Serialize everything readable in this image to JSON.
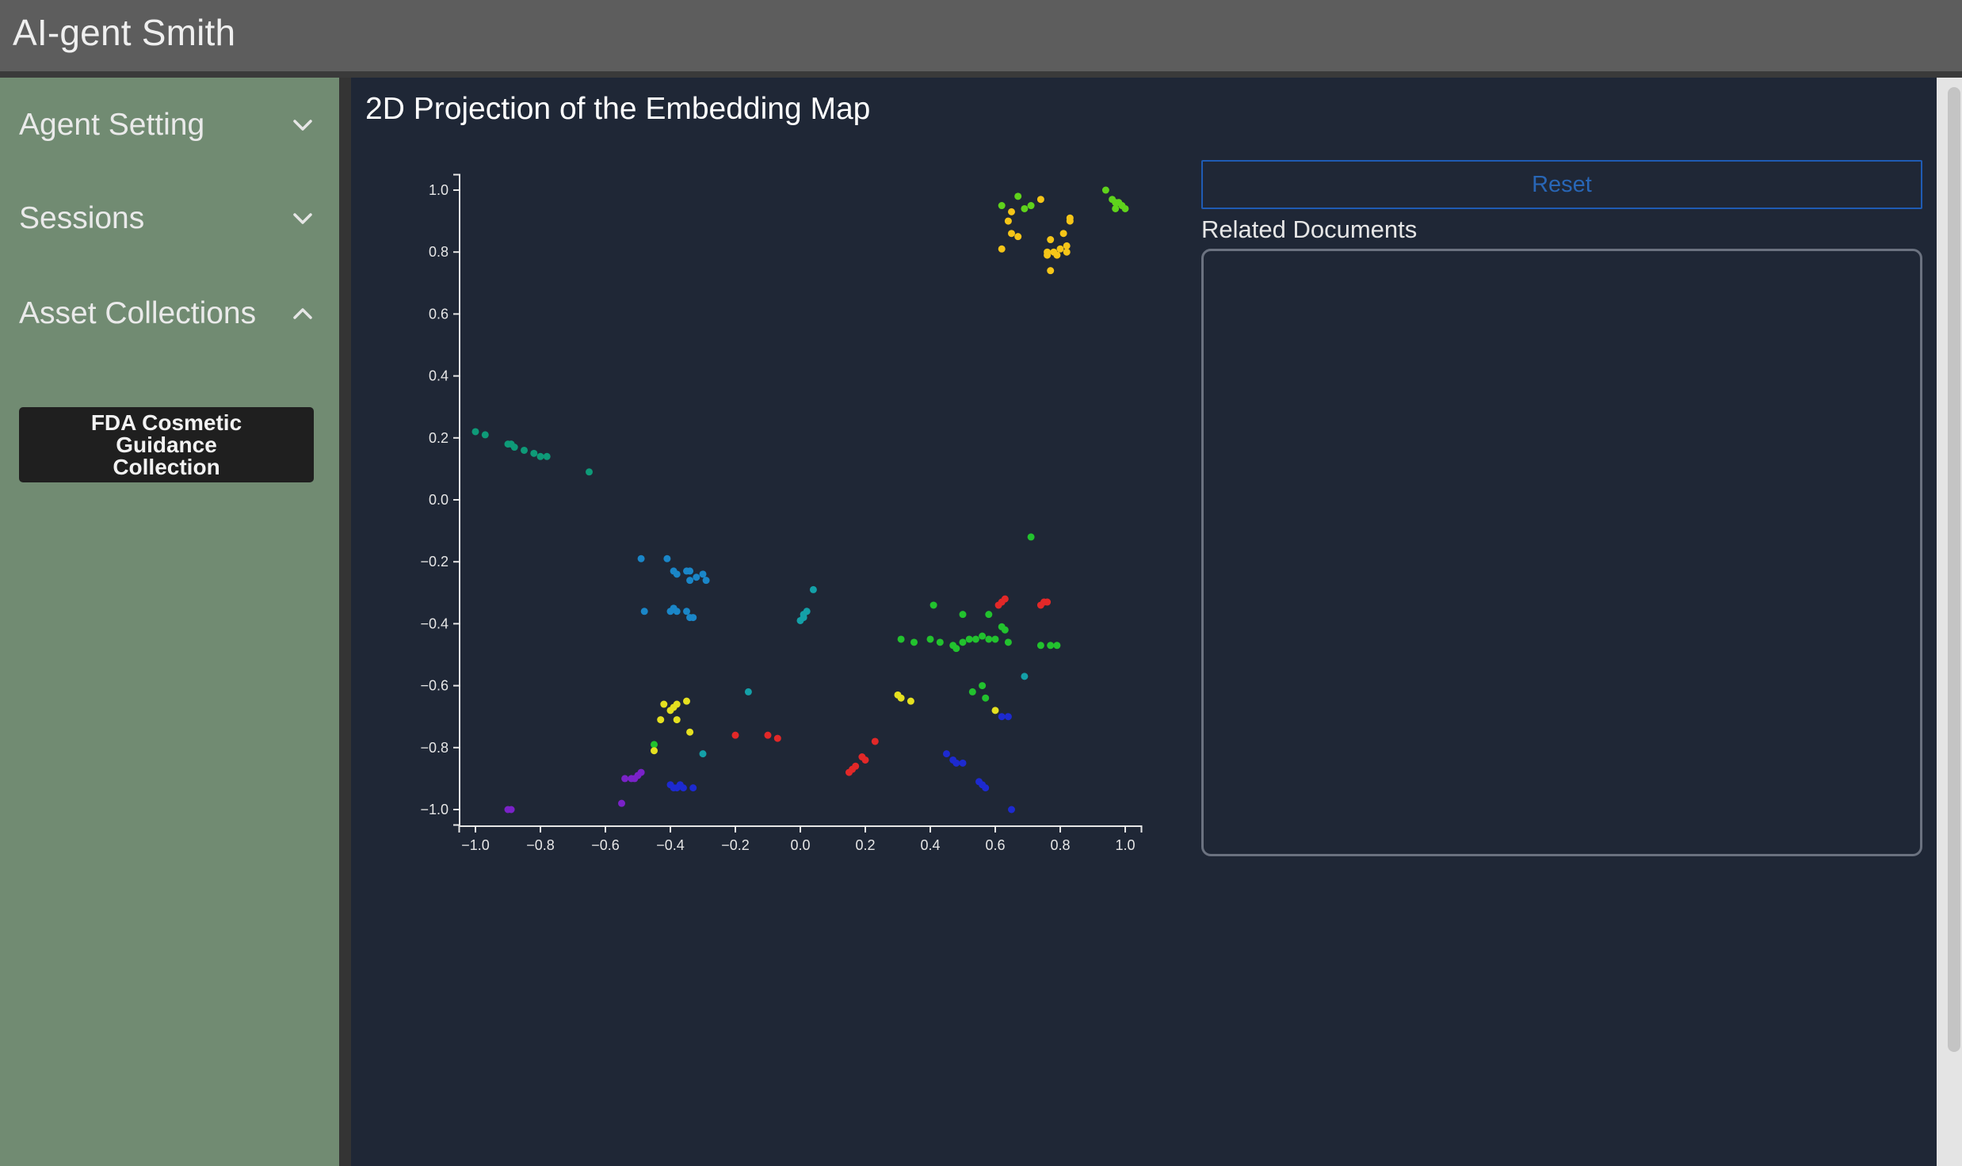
{
  "app": {
    "title": "AI-gent Smith"
  },
  "sidebar": {
    "sections": [
      {
        "label": "Agent Setting",
        "expanded": false,
        "icon": "chevron-down-icon"
      },
      {
        "label": "Sessions",
        "expanded": false,
        "icon": "chevron-down-icon"
      },
      {
        "label": "Asset Collections",
        "expanded": true,
        "icon": "chevron-up-icon"
      }
    ],
    "collections": [
      {
        "label": "FDA Cosmetic Guidance Collection"
      }
    ]
  },
  "main": {
    "title": "2D Projection of the Embedding Map",
    "reset_label": "Reset",
    "related_label": "Related Documents"
  },
  "colors": {
    "topbar": "#5d5d5d",
    "sidebar": "#718b72",
    "main_bg": "#1f2736",
    "reset_accent": "#2866b6"
  },
  "chart_data": {
    "type": "scatter",
    "title": "",
    "xlabel": "",
    "ylabel": "",
    "xlim": [
      -1.05,
      1.05
    ],
    "ylim": [
      -1.05,
      1.05
    ],
    "xticks": [
      "−1.0",
      "−0.8",
      "−0.6",
      "−0.4",
      "−0.2",
      "0.0",
      "0.2",
      "0.4",
      "0.6",
      "0.8",
      "1.0"
    ],
    "yticks": [
      "1.0",
      "0.8",
      "0.6",
      "0.4",
      "0.2",
      "0.0",
      "−0.2",
      "−0.4",
      "−0.6",
      "−0.8",
      "−1.0"
    ],
    "grid": false,
    "series": [
      {
        "color": "#0e9a78",
        "points": [
          [
            -1.0,
            0.22
          ],
          [
            -0.97,
            0.21
          ],
          [
            -0.9,
            0.18
          ],
          [
            -0.89,
            0.18
          ],
          [
            -0.88,
            0.17
          ],
          [
            -0.85,
            0.16
          ],
          [
            -0.82,
            0.15
          ],
          [
            -0.8,
            0.14
          ],
          [
            -0.78,
            0.14
          ],
          [
            -0.65,
            0.09
          ]
        ]
      },
      {
        "color": "#1a86c8",
        "points": [
          [
            -0.49,
            -0.19
          ],
          [
            -0.41,
            -0.19
          ],
          [
            -0.39,
            -0.23
          ],
          [
            -0.38,
            -0.24
          ],
          [
            -0.35,
            -0.23
          ],
          [
            -0.34,
            -0.23
          ],
          [
            -0.34,
            -0.26
          ],
          [
            -0.32,
            -0.25
          ],
          [
            -0.3,
            -0.24
          ],
          [
            -0.29,
            -0.26
          ],
          [
            -0.48,
            -0.36
          ],
          [
            -0.4,
            -0.36
          ],
          [
            -0.39,
            -0.35
          ],
          [
            -0.38,
            -0.36
          ],
          [
            -0.35,
            -0.36
          ],
          [
            -0.33,
            -0.38
          ],
          [
            -0.34,
            -0.38
          ]
        ]
      },
      {
        "color": "#14a0a8",
        "points": [
          [
            0.0,
            -0.39
          ],
          [
            0.01,
            -0.37
          ],
          [
            0.02,
            -0.36
          ],
          [
            0.01,
            -0.38
          ],
          [
            0.04,
            -0.29
          ],
          [
            -0.16,
            -0.62
          ],
          [
            -0.3,
            -0.82
          ],
          [
            0.69,
            -0.57
          ]
        ]
      },
      {
        "color": "#22c22e",
        "points": [
          [
            0.71,
            -0.12
          ],
          [
            0.41,
            -0.34
          ],
          [
            0.5,
            -0.37
          ],
          [
            0.58,
            -0.37
          ],
          [
            0.62,
            -0.41
          ],
          [
            0.63,
            -0.42
          ],
          [
            0.31,
            -0.45
          ],
          [
            0.35,
            -0.46
          ],
          [
            0.4,
            -0.45
          ],
          [
            0.43,
            -0.46
          ],
          [
            0.47,
            -0.47
          ],
          [
            0.48,
            -0.48
          ],
          [
            0.5,
            -0.46
          ],
          [
            0.52,
            -0.45
          ],
          [
            0.54,
            -0.45
          ],
          [
            0.56,
            -0.44
          ],
          [
            0.58,
            -0.45
          ],
          [
            0.6,
            -0.45
          ],
          [
            0.64,
            -0.46
          ],
          [
            0.74,
            -0.47
          ],
          [
            0.77,
            -0.47
          ],
          [
            0.79,
            -0.47
          ],
          [
            0.53,
            -0.62
          ],
          [
            0.56,
            -0.6
          ],
          [
            0.57,
            -0.64
          ],
          [
            -0.45,
            -0.79
          ]
        ]
      },
      {
        "color": "#e5e020",
        "points": [
          [
            -0.42,
            -0.66
          ],
          [
            -0.39,
            -0.67
          ],
          [
            -0.38,
            -0.66
          ],
          [
            -0.4,
            -0.68
          ],
          [
            -0.35,
            -0.65
          ],
          [
            -0.43,
            -0.71
          ],
          [
            -0.38,
            -0.71
          ],
          [
            -0.34,
            -0.75
          ],
          [
            -0.45,
            -0.81
          ],
          [
            0.3,
            -0.63
          ],
          [
            0.31,
            -0.64
          ],
          [
            0.34,
            -0.65
          ],
          [
            0.6,
            -0.68
          ]
        ]
      },
      {
        "color": "#e22828",
        "points": [
          [
            0.61,
            -0.34
          ],
          [
            0.62,
            -0.33
          ],
          [
            0.63,
            -0.32
          ],
          [
            0.74,
            -0.34
          ],
          [
            0.75,
            -0.33
          ],
          [
            0.76,
            -0.33
          ],
          [
            -0.1,
            -0.76
          ],
          [
            -0.07,
            -0.77
          ],
          [
            0.23,
            -0.78
          ],
          [
            0.19,
            -0.83
          ],
          [
            0.2,
            -0.84
          ],
          [
            0.17,
            -0.86
          ],
          [
            0.16,
            -0.87
          ],
          [
            0.15,
            -0.88
          ],
          [
            -0.2,
            -0.76
          ]
        ]
      },
      {
        "color": "#1d2ad0",
        "points": [
          [
            0.45,
            -0.82
          ],
          [
            0.47,
            -0.84
          ],
          [
            0.48,
            -0.85
          ],
          [
            0.5,
            -0.85
          ],
          [
            0.55,
            -0.91
          ],
          [
            0.56,
            -0.92
          ],
          [
            0.57,
            -0.93
          ],
          [
            0.62,
            -0.7
          ],
          [
            0.64,
            -0.7
          ],
          [
            0.65,
            -1.0
          ],
          [
            -0.4,
            -0.92
          ],
          [
            -0.38,
            -0.93
          ],
          [
            -0.37,
            -0.92
          ],
          [
            -0.36,
            -0.93
          ],
          [
            -0.33,
            -0.93
          ],
          [
            -0.39,
            -0.93
          ]
        ]
      },
      {
        "color": "#7a22c8",
        "points": [
          [
            -0.9,
            -1.0
          ],
          [
            -0.89,
            -1.0
          ],
          [
            -0.55,
            -0.98
          ],
          [
            -0.54,
            -0.9
          ],
          [
            -0.52,
            -0.9
          ],
          [
            -0.5,
            -0.89
          ],
          [
            -0.51,
            -0.9
          ],
          [
            -0.49,
            -0.88
          ]
        ]
      },
      {
        "color": "#5fd21c",
        "points": [
          [
            0.62,
            0.95
          ],
          [
            0.67,
            0.98
          ],
          [
            0.69,
            0.94
          ],
          [
            0.71,
            0.95
          ],
          [
            0.94,
            1.0
          ],
          [
            0.96,
            0.97
          ],
          [
            0.97,
            0.96
          ],
          [
            0.98,
            0.96
          ],
          [
            0.99,
            0.95
          ],
          [
            0.97,
            0.94
          ],
          [
            1.0,
            0.94
          ]
        ]
      },
      {
        "color": "#f5c518",
        "points": [
          [
            0.64,
            0.9
          ],
          [
            0.65,
            0.93
          ],
          [
            0.74,
            0.97
          ],
          [
            0.83,
            0.91
          ],
          [
            0.83,
            0.9
          ],
          [
            0.62,
            0.81
          ],
          [
            0.65,
            0.86
          ],
          [
            0.67,
            0.85
          ],
          [
            0.77,
            0.84
          ],
          [
            0.81,
            0.86
          ],
          [
            0.76,
            0.8
          ],
          [
            0.78,
            0.8
          ],
          [
            0.79,
            0.79
          ],
          [
            0.8,
            0.81
          ],
          [
            0.82,
            0.82
          ],
          [
            0.82,
            0.8
          ],
          [
            0.77,
            0.74
          ],
          [
            0.76,
            0.79
          ]
        ]
      }
    ]
  }
}
